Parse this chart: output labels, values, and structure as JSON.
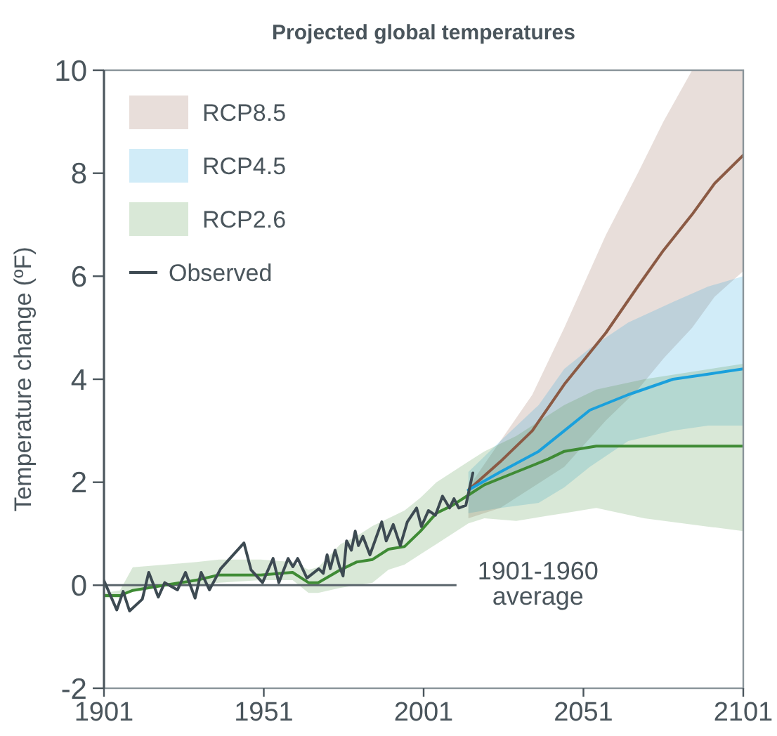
{
  "chart_data": {
    "type": "line",
    "title": "Projected global temperatures",
    "ylabel": "Temperature change (ºF)",
    "xlim": [
      1901,
      2101
    ],
    "ylim": [
      -2,
      10
    ],
    "xticks": [
      1901,
      1951,
      2001,
      2051,
      2101
    ],
    "yticks": [
      -2,
      0,
      2,
      4,
      6,
      8,
      10
    ],
    "grid": false,
    "legend": "top left",
    "line_style": "solid",
    "marker": "none",
    "ref_lines": [
      {
        "axis": "y",
        "value": 0,
        "label": "1901-1960 average",
        "color": "#5a646b"
      }
    ],
    "series": [
      {
        "name": "RCP8.5",
        "color": "#8b5a44",
        "x": [
          2015,
          2025,
          2035,
          2045,
          2058,
          2068,
          2076,
          2085,
          2092,
          2101
        ],
        "values": [
          1.85,
          2.4,
          3.0,
          3.9,
          4.9,
          5.8,
          6.5,
          7.2,
          7.8,
          8.35
        ],
        "lower": [
          1.3,
          1.5,
          1.9,
          2.3,
          3.2,
          3.8,
          4.4,
          5.0,
          5.6,
          6.1
        ],
        "upper": [
          1.9,
          2.8,
          3.7,
          5.0,
          6.8,
          8.0,
          9.0,
          10,
          10,
          10
        ]
      },
      {
        "name": "RCP4.5",
        "color": "#1aa0dc",
        "x": [
          2015,
          2025,
          2037,
          2045,
          2053,
          2065,
          2079,
          2090,
          2101
        ],
        "values": [
          1.85,
          2.2,
          2.6,
          3.0,
          3.4,
          3.7,
          4.0,
          4.1,
          4.2
        ],
        "lower": [
          1.4,
          1.5,
          1.6,
          1.9,
          2.3,
          2.8,
          3.0,
          3.1,
          3.1
        ],
        "upper": [
          2.2,
          2.8,
          3.5,
          4.2,
          4.6,
          5.1,
          5.5,
          5.8,
          6.0
        ]
      },
      {
        "name": "RCP2.6",
        "color": "#3f8b35",
        "x": [
          1901,
          1906,
          1910,
          1920,
          1930,
          1937,
          1950,
          1960,
          1965,
          1968,
          1975,
          1980,
          1985,
          1990,
          1995,
          2000,
          2005,
          2010,
          2015,
          2020,
          2030,
          2040,
          2045,
          2055,
          2070,
          2101
        ],
        "values": [
          -0.2,
          -0.2,
          -0.1,
          0.0,
          0.1,
          0.2,
          0.2,
          0.25,
          0.05,
          0.05,
          0.3,
          0.45,
          0.5,
          0.7,
          0.75,
          1.05,
          1.4,
          1.55,
          1.75,
          1.95,
          2.2,
          2.45,
          2.6,
          2.7,
          2.7,
          2.7
        ],
        "lower": [
          -0.25,
          -0.25,
          -0.1,
          0.0,
          0.0,
          0.05,
          0.1,
          0.1,
          -0.15,
          -0.15,
          -0.05,
          0.0,
          0.05,
          0.3,
          0.4,
          0.6,
          0.8,
          1.0,
          1.2,
          1.3,
          1.25,
          1.35,
          1.4,
          1.5,
          1.3,
          1.05
        ],
        "upper": [
          -0.15,
          -0.1,
          0.35,
          0.4,
          0.45,
          0.5,
          0.5,
          0.45,
          0.3,
          0.35,
          0.8,
          0.95,
          1.15,
          1.3,
          1.45,
          1.7,
          2.0,
          2.2,
          2.4,
          2.6,
          2.9,
          3.3,
          3.5,
          3.8,
          4.0,
          4.3
        ]
      },
      {
        "name": "Observed",
        "color": "#3d4a52",
        "x": [
          1901,
          1905,
          1907,
          1909,
          1913,
          1915,
          1918,
          1920,
          1924,
          1926.5,
          1929.5,
          1931.4,
          1934,
          1937.5,
          1944.8,
          1947,
          1950.6,
          1953.9,
          1955.7,
          1958.6,
          1960.1,
          1961.6,
          1964.5,
          1968.2,
          1969.6,
          1970.8,
          1971.8,
          1973.3,
          1974.7,
          1975.8,
          1976.9,
          1978.4,
          1979.6,
          1980.6,
          1982,
          1984.2,
          1987.9,
          1989.3,
          1991.5,
          1993.7,
          1995.9,
          1998.8,
          2000.3,
          2002.5,
          2004.7,
          2006.9,
          2009.1,
          2010.5,
          2012,
          2014.2,
          2016.4
        ],
        "values": [
          0.09,
          -0.48,
          -0.12,
          -0.5,
          -0.27,
          0.25,
          -0.23,
          0.05,
          -0.09,
          0.25,
          -0.25,
          0.25,
          -0.09,
          0.32,
          0.82,
          0.3,
          0.05,
          0.52,
          0.05,
          0.52,
          0.36,
          0.52,
          0.14,
          0.32,
          0.23,
          0.59,
          0.32,
          0.68,
          0.36,
          0.18,
          0.86,
          0.68,
          1.05,
          0.77,
          0.95,
          0.59,
          1.23,
          0.86,
          1.18,
          0.77,
          1.23,
          1.5,
          1.14,
          1.45,
          1.36,
          1.73,
          1.5,
          1.68,
          1.5,
          1.55,
          2.18
        ]
      }
    ]
  }
}
